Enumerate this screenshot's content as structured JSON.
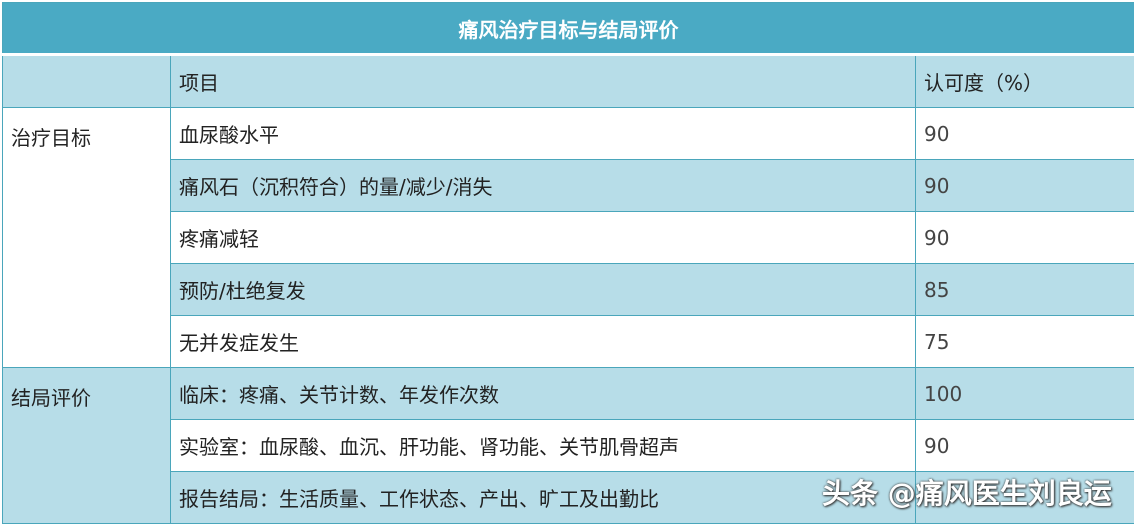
{
  "title": "痛风治疗目标与结局评价",
  "headers": {
    "group": "",
    "item": "项目",
    "approval": "认可度（%）"
  },
  "groups": [
    {
      "label": "治疗目标",
      "rows": [
        {
          "item": "血尿酸水平",
          "value": "90"
        },
        {
          "item": "痛风石（沉积符合）的量/减少/消失",
          "value": "90"
        },
        {
          "item": "疼痛减轻",
          "value": "90"
        },
        {
          "item": "预防/杜绝复发",
          "value": "85"
        },
        {
          "item": "无并发症发生",
          "value": "75"
        }
      ]
    },
    {
      "label": "结局评价",
      "rows": [
        {
          "item": "临床：疼痛、关节计数、年发作次数",
          "value": "100"
        },
        {
          "item": "实验室：血尿酸、血沉、肝功能、肾功能、关节肌骨超声",
          "value": "90"
        },
        {
          "item": "报告结局：生活质量、工作状态、产出、旷工及出勤比",
          "value": ""
        }
      ]
    }
  ],
  "watermark": "头条 @痛风医生刘良运",
  "colors": {
    "title_bg": "#4aaac4",
    "band": "#b7dde8",
    "border": "#4aa6bb"
  }
}
